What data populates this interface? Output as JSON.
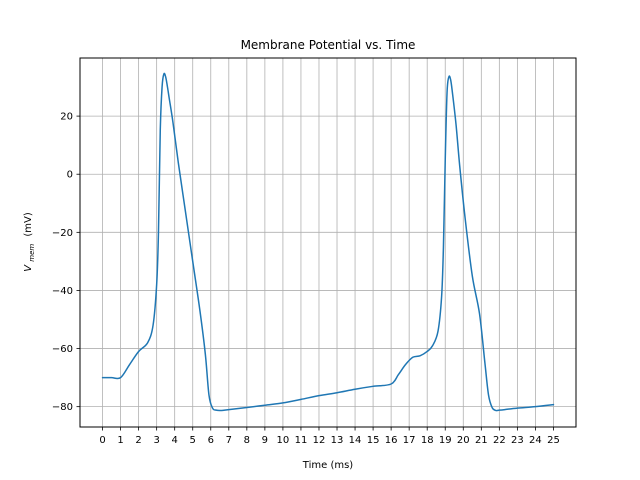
{
  "chart_data": {
    "type": "line",
    "title": "Membrane Potential vs. Time",
    "xlabel": "Time (ms)",
    "ylabel_main": "V",
    "ylabel_sub": "mem",
    "ylabel_unit": "(mV)",
    "xlim": [
      -1.25,
      26.25
    ],
    "ylim": [
      -87,
      40
    ],
    "xticks": [
      0,
      1,
      2,
      3,
      4,
      5,
      6,
      7,
      8,
      9,
      10,
      11,
      12,
      13,
      14,
      15,
      16,
      17,
      18,
      19,
      20,
      21,
      22,
      23,
      24,
      25
    ],
    "xtick_labels": [
      "0",
      "1",
      "2",
      "3",
      "4",
      "5",
      "6",
      "7",
      "8",
      "9",
      "10",
      "11",
      "12",
      "13",
      "14",
      "15",
      "16",
      "17",
      "18",
      "19",
      "20",
      "21",
      "22",
      "23",
      "24",
      "25"
    ],
    "yticks": [
      -80,
      -60,
      -40,
      -20,
      0,
      20
    ],
    "ytick_labels": [
      "−80",
      "−60",
      "−40",
      "−20",
      "0",
      "20"
    ],
    "grid": true,
    "line_color": "#1f77b4",
    "series": [
      {
        "x": [
          0,
          0.5,
          1.0,
          1.5,
          2.0,
          2.5,
          2.8,
          3.0,
          3.1,
          3.2,
          3.3,
          3.4,
          3.5,
          3.6,
          3.7,
          3.9,
          4.2,
          4.6,
          5.0,
          5.4,
          5.7,
          5.9,
          6.1,
          6.3,
          6.6,
          7.0,
          8.0,
          9.0,
          10.0,
          11.0,
          12.0,
          13.0,
          14.0,
          15.0,
          16.0,
          16.4,
          16.8,
          17.2,
          17.6,
          18.0,
          18.3,
          18.6,
          18.8,
          18.9,
          19.0,
          19.1,
          19.2,
          19.3,
          19.4,
          19.6,
          19.8,
          20.1,
          20.5,
          20.9,
          21.2,
          21.4,
          21.6,
          21.8,
          22.0,
          22.3,
          23.0,
          24.0,
          25.0
        ],
        "y": [
          -70,
          -70,
          -70,
          -65.5,
          -61,
          -58,
          -52,
          -38,
          -20,
          15,
          30,
          34.5,
          33.5,
          30,
          26,
          18,
          4,
          -13,
          -30,
          -47,
          -62,
          -76,
          -80.5,
          -81.2,
          -81.3,
          -81,
          -80.3,
          -79.5,
          -78.7,
          -77.5,
          -76.2,
          -75.2,
          -74,
          -73,
          -72.2,
          -69,
          -65.5,
          -63,
          -62.5,
          -61,
          -59,
          -54,
          -42,
          -25,
          5,
          28,
          33.5,
          32.5,
          28,
          17,
          3,
          -15,
          -35,
          -48,
          -65,
          -76,
          -80.3,
          -81.3,
          -81.2,
          -81,
          -80.5,
          -80,
          -79.3
        ]
      }
    ]
  }
}
